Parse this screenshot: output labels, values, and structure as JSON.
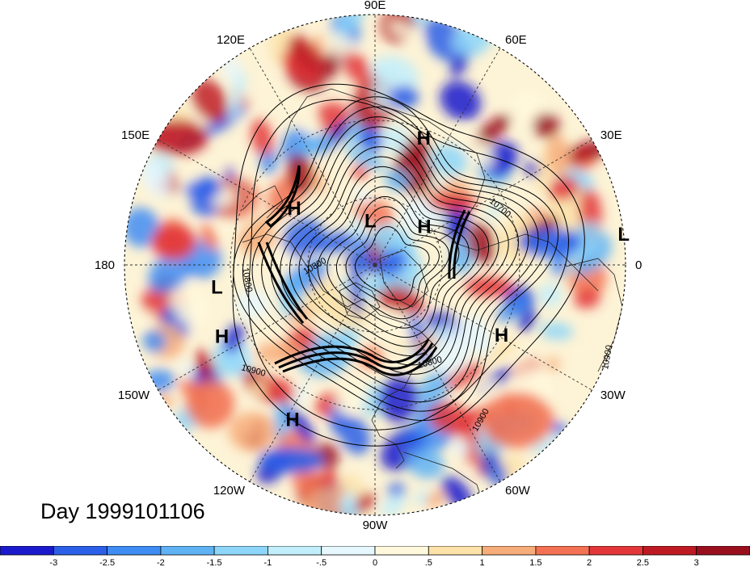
{
  "title": "Day 1999101106",
  "longitude_labels": [
    {
      "text": "90E",
      "angle": 90
    },
    {
      "text": "60E",
      "angle": 60
    },
    {
      "text": "30E",
      "angle": 30
    },
    {
      "text": "0",
      "angle": 0
    },
    {
      "text": "30W",
      "angle": -30
    },
    {
      "text": "60W",
      "angle": -60
    },
    {
      "text": "90W",
      "angle": -90
    },
    {
      "text": "120W",
      "angle": -120
    },
    {
      "text": "150W",
      "angle": -150
    },
    {
      "text": "180",
      "angle": 180
    },
    {
      "text": "150E",
      "angle": 150
    },
    {
      "text": "120E",
      "angle": 120
    }
  ],
  "pressure_systems": [
    {
      "type": "H",
      "lon": 69,
      "lat": 33
    },
    {
      "type": "H",
      "lon": 38,
      "lat": 62
    },
    {
      "type": "H",
      "lon": 145,
      "lat": 47
    },
    {
      "type": "L",
      "lon": 96,
      "lat": 70
    },
    {
      "type": "L",
      "lon": 7,
      "lat": 0
    },
    {
      "type": "L",
      "lon": -172,
      "lat": 25
    },
    {
      "type": "H",
      "lon": -155,
      "lat": 22
    },
    {
      "type": "H",
      "lon": -118,
      "lat": 20
    },
    {
      "type": "H",
      "lon": -29,
      "lat": 30
    }
  ],
  "contour_labels": [
    "10700",
    "10800",
    "10800",
    "10800",
    "10900",
    "10900",
    "10900"
  ],
  "colorbar": {
    "ticks": [
      "-3",
      "-2.5",
      "-2",
      "-1.5",
      "-1",
      "-.5",
      "0",
      ".5",
      "1",
      "1.5",
      "2",
      "2.5",
      "3"
    ],
    "colors": [
      "#1a1acc",
      "#2c5fe8",
      "#3f8cf3",
      "#5fb3f5",
      "#8dd6f9",
      "#c2eefb",
      "#e6f7fd",
      "#fff8dc",
      "#fce2a8",
      "#f7ad7a",
      "#f27253",
      "#e3363a",
      "#be1a23",
      "#990f1e"
    ]
  }
}
